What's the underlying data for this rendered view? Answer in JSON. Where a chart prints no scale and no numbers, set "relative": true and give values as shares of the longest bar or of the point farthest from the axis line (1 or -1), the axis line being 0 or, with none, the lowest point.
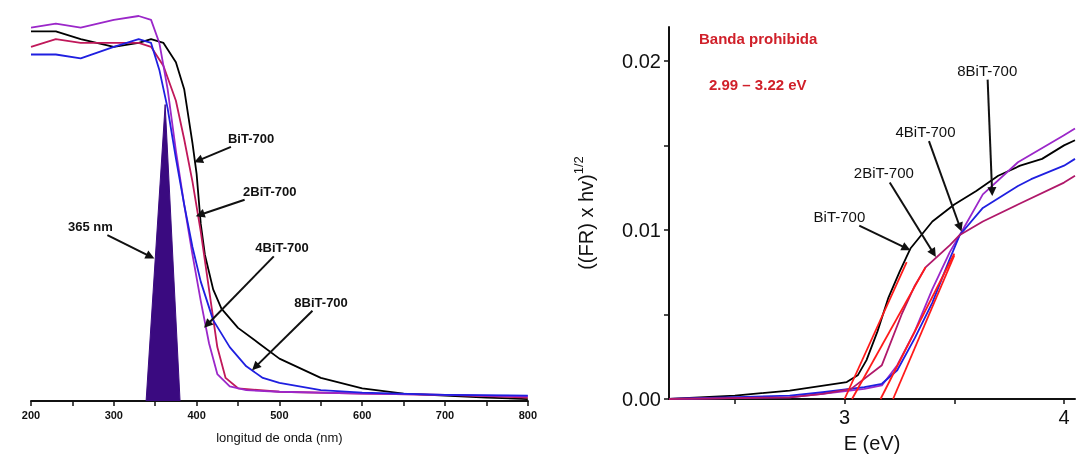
{
  "chart_data": [
    {
      "type": "line",
      "relative": true,
      "xlabel": "longitud de onda (nm)",
      "xlim": [
        200,
        800
      ],
      "xticks": [
        200,
        {
          "value": 250,
          "label": null
        },
        300,
        {
          "value": 350,
          "label": null
        },
        400,
        {
          "value": 450,
          "label": null
        },
        500,
        {
          "value": 550,
          "label": null
        },
        600,
        {
          "value": 650,
          "label": null
        },
        700,
        {
          "value": 750,
          "label": null
        },
        800
      ],
      "tick_labels": "x",
      "marker": "none",
      "series": [
        {
          "color": "#3a0a80",
          "type": "area",
          "x": [
            339,
            362,
            380
          ],
          "values": [
            0,
            0.77,
            0
          ]
        },
        {
          "color": "#000000",
          "x": [
            200,
            230,
            260,
            300,
            330,
            345,
            360,
            375,
            385,
            395,
            400,
            405,
            410,
            420,
            430,
            450,
            475,
            500,
            550,
            600,
            650,
            700,
            750,
            800
          ],
          "values": [
            0.96,
            0.96,
            0.94,
            0.92,
            0.93,
            0.94,
            0.93,
            0.88,
            0.81,
            0.67,
            0.59,
            0.46,
            0.38,
            0.29,
            0.24,
            0.19,
            0.15,
            0.11,
            0.06,
            0.033,
            0.019,
            0.014,
            0.009,
            0.005
          ]
        },
        {
          "color": "#c0185a",
          "x": [
            200,
            230,
            260,
            300,
            330,
            345,
            360,
            375,
            385,
            395,
            405,
            415,
            425,
            435,
            450,
            500,
            600,
            700,
            800
          ],
          "values": [
            0.92,
            0.94,
            0.93,
            0.93,
            0.93,
            0.92,
            0.87,
            0.78,
            0.68,
            0.57,
            0.44,
            0.29,
            0.14,
            0.06,
            0.033,
            0.024,
            0.019,
            0.016,
            0.009
          ]
        },
        {
          "color": "#9b27c9",
          "x": [
            200,
            230,
            260,
            300,
            330,
            345,
            355,
            365,
            375,
            385,
            395,
            405,
            415,
            425,
            440,
            460,
            500,
            600,
            700,
            800
          ],
          "values": [
            0.97,
            0.98,
            0.97,
            0.99,
            1,
            0.99,
            0.93,
            0.81,
            0.65,
            0.51,
            0.38,
            0.26,
            0.15,
            0.07,
            0.038,
            0.028,
            0.024,
            0.019,
            0.016,
            0.012
          ]
        },
        {
          "color": "#1f1fe0",
          "x": [
            200,
            230,
            260,
            300,
            330,
            345,
            355,
            365,
            375,
            385,
            395,
            405,
            420,
            440,
            460,
            480,
            500,
            550,
            600,
            700,
            800
          ],
          "values": [
            0.9,
            0.9,
            0.89,
            0.92,
            0.94,
            0.93,
            0.86,
            0.76,
            0.63,
            0.51,
            0.4,
            0.31,
            0.21,
            0.14,
            0.09,
            0.06,
            0.047,
            0.028,
            0.022,
            0.016,
            0.014
          ]
        }
      ],
      "annotations": [
        {
          "text": "BiT-700",
          "x": 397,
          "y": 0.62
        },
        {
          "text": "2BiT-700",
          "x": 399,
          "y": 0.48
        },
        {
          "text": "4BiT-700",
          "x": 409,
          "y": 0.19
        },
        {
          "text": "8BiT-700",
          "x": 467,
          "y": 0.08
        },
        {
          "text": "365 nm",
          "x": 349,
          "y": 0.37
        }
      ]
    },
    {
      "type": "line",
      "xlabel": "E (eV)",
      "ylabel": "((FR) x hv)$^{1/2}$",
      "xlim": [
        2.2,
        4.05
      ],
      "ylim": [
        0,
        0.022
      ],
      "xticks": [
        {
          "value": 2.5,
          "label": null
        },
        3,
        {
          "value": 3.5,
          "label": null
        },
        4
      ],
      "yticks": [
        {
          "value": 0,
          "label": "0.00"
        },
        {
          "value": 0.005,
          "label": null
        },
        {
          "value": 0.01,
          "label": "0.01"
        },
        {
          "value": 0.015,
          "label": null
        },
        {
          "value": 0.02,
          "label": "0.02"
        }
      ],
      "marker": "none",
      "series": [
        {
          "color": "#000000",
          "x": [
            2.2,
            2.5,
            2.75,
            3.01,
            3.06,
            3.1,
            3.15,
            3.2,
            3.25,
            3.3,
            3.35,
            3.4,
            3.5,
            3.6,
            3.7,
            3.8,
            3.9,
            4.0,
            4.05
          ],
          "values": [
            0,
            0.0002,
            0.0005,
            0.001,
            0.0014,
            0.0023,
            0.004,
            0.006,
            0.0075,
            0.0089,
            0.0097,
            0.0105,
            0.0115,
            0.0123,
            0.0132,
            0.0138,
            0.0142,
            0.015,
            0.0153
          ]
        },
        {
          "color": "#9b27c9",
          "x": [
            2.2,
            2.75,
            2.9,
            3.09,
            3.17,
            3.24,
            3.32,
            3.4,
            3.48,
            3.525,
            3.63,
            3.79,
            4.0,
            4.05
          ],
          "values": [
            0,
            0.0001,
            0.0003,
            0.0006,
            0.0008,
            0.002,
            0.004,
            0.0065,
            0.0087,
            0.0097,
            0.0121,
            0.014,
            0.0156,
            0.016
          ]
        },
        {
          "color": "#1f1fe0",
          "x": [
            2.2,
            2.75,
            2.9,
            3.09,
            3.17,
            3.24,
            3.32,
            3.4,
            3.48,
            3.525,
            3.63,
            3.79,
            3.85,
            4.0,
            4.05
          ],
          "values": [
            0,
            0.0002,
            0.0004,
            0.0007,
            0.0009,
            0.0017,
            0.0036,
            0.0057,
            0.0083,
            0.0097,
            0.0113,
            0.0126,
            0.013,
            0.0138,
            0.0142
          ]
        },
        {
          "color": "#b0186a",
          "x": [
            2.2,
            2.75,
            2.9,
            3.03,
            3.17,
            3.26,
            3.32,
            3.37,
            3.48,
            3.525,
            3.63,
            3.79,
            4.0,
            4.05
          ],
          "values": [
            0,
            0.0001,
            0.0003,
            0.0006,
            0.002,
            0.005,
            0.0067,
            0.0078,
            0.0091,
            0.0097,
            0.0105,
            0.0115,
            0.0128,
            0.0132
          ]
        },
        {
          "color": "#ff1a1a",
          "x": [
            3.0,
            3.283
          ],
          "values": [
            0,
            0.0081
          ]
        },
        {
          "color": "#ff1a1a",
          "x": [
            3.034,
            3.369
          ],
          "values": [
            0,
            0.0078
          ]
        },
        {
          "color": "#ff1a1a",
          "x": [
            3.164,
            3.5
          ],
          "values": [
            0,
            0.0086
          ]
        },
        {
          "color": "#ff1a1a",
          "x": [
            3.221,
            3.5
          ],
          "values": [
            0,
            0.0085
          ]
        }
      ],
      "annotations": [
        "Banda prohibida",
        "2.99 – 3.22 eV",
        {
          "text": "BiT-700",
          "x": 3.3,
          "y": 0.0088
        },
        {
          "text": "2BiT-700",
          "x": 3.416,
          "y": 0.0084
        },
        {
          "text": "4BiT-700",
          "x": 3.533,
          "y": 0.0099
        },
        {
          "text": "8BiT-700",
          "x": 3.673,
          "y": 0.012
        }
      ]
    }
  ]
}
